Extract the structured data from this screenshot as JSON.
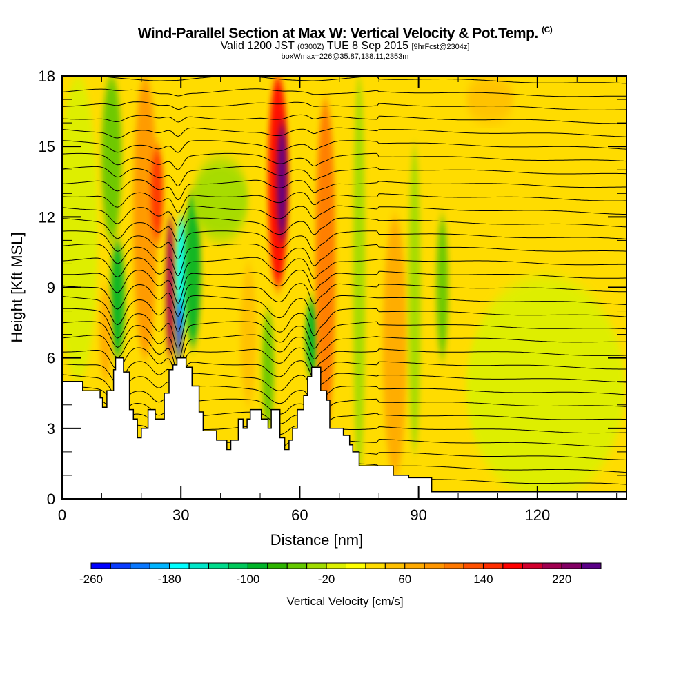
{
  "title": {
    "main": "Wind-Parallel Section at Max W: Vertical Velocity & Pot.Temp.",
    "copyright": "(C)",
    "valid_prefix": "Valid 1200 JST",
    "valid_utc": "(0300Z)",
    "valid_date": "TUE 8 Sep 2015",
    "forecast": "[9hrFcst@2304z]",
    "box": "boxWmax=226@35.87,138.11,2353m"
  },
  "chart_data": {
    "type": "heatmap",
    "title": "Wind-Parallel Section at Max W: Vertical Velocity & Pot.Temp.",
    "xlabel": "Distance [nm]",
    "ylabel": "Height [Kft MSL]",
    "xlim": [
      0,
      142.5
    ],
    "ylim": [
      0,
      18
    ],
    "x_ticks": [
      0,
      30,
      60,
      90,
      120
    ],
    "x_tick_labels": [
      "0",
      "30",
      "60",
      "90",
      "120"
    ],
    "x_minor_step": 10,
    "y_ticks": [
      0,
      3,
      6,
      9,
      12,
      15,
      18
    ],
    "y_tick_labels": [
      "0",
      "3",
      "6",
      "9",
      "12",
      "15",
      "18"
    ],
    "y_minor_step": 1,
    "background_value": 20,
    "features": [
      {
        "x": 4,
        "w": 10,
        "y0": 5,
        "y1": 18,
        "value": -20
      },
      {
        "x": 12.5,
        "w": 5,
        "y0": 11,
        "y1": 18,
        "value": -60
      },
      {
        "x": 14,
        "w": 3.5,
        "y0": 6,
        "y1": 11,
        "value": -100
      },
      {
        "x": 11,
        "w": 3,
        "y0": 5,
        "y1": 9,
        "value": 60
      },
      {
        "x": 21,
        "w": 6,
        "y0": 6,
        "y1": 18,
        "value": 80
      },
      {
        "x": 24,
        "w": 3,
        "y0": 11,
        "y1": 15,
        "value": 140
      },
      {
        "x": 27.3,
        "w": 2.2,
        "y0": 6,
        "y1": 12,
        "value": 200
      },
      {
        "x": 30.2,
        "w": 3,
        "y0": 7,
        "y1": 12,
        "value": -180
      },
      {
        "x": 29.5,
        "w": 1.5,
        "y0": 5.8,
        "y1": 8.5,
        "value": -240
      },
      {
        "x": 33,
        "w": 4,
        "y0": 6.5,
        "y1": 13,
        "value": -100
      },
      {
        "x": 40,
        "w": 14,
        "y0": 11,
        "y1": 14.5,
        "value": -40
      },
      {
        "x": 47,
        "w": 4,
        "y0": 4,
        "y1": 10,
        "value": 40
      },
      {
        "x": 52,
        "w": 3,
        "y0": 3,
        "y1": 8,
        "value": -60
      },
      {
        "x": 54.5,
        "w": 5,
        "y0": 9,
        "y1": 18,
        "value": 160
      },
      {
        "x": 55.5,
        "w": 2.5,
        "y0": 11,
        "y1": 16,
        "value": 240
      },
      {
        "x": 63,
        "w": 3,
        "y0": 5.2,
        "y1": 8.5,
        "value": -100
      },
      {
        "x": 66.5,
        "w": 5,
        "y0": 3,
        "y1": 17,
        "value": 100
      },
      {
        "x": 75,
        "w": 3,
        "y0": 1,
        "y1": 18,
        "value": -40
      },
      {
        "x": 84,
        "w": 6,
        "y0": 1,
        "y1": 12,
        "value": 60
      },
      {
        "x": 89,
        "w": 3,
        "y0": 2,
        "y1": 15,
        "value": -40
      },
      {
        "x": 96,
        "w": 3,
        "y0": 6,
        "y1": 12,
        "value": -60
      },
      {
        "x": 108,
        "w": 12,
        "y0": 16,
        "y1": 18,
        "value": 40
      },
      {
        "x": 122,
        "w": 40,
        "y0": 0,
        "y1": 9.5,
        "value": -20
      }
    ],
    "terrain": [
      [
        0,
        5.0
      ],
      [
        5.2,
        5.0
      ],
      [
        5.2,
        4.6
      ],
      [
        9.6,
        4.6
      ],
      [
        9.6,
        4.3
      ],
      [
        10.2,
        4.3
      ],
      [
        10.2,
        3.9
      ],
      [
        11.3,
        3.9
      ],
      [
        11.3,
        4.6
      ],
      [
        13,
        4.6
      ],
      [
        13,
        5.5
      ],
      [
        13.5,
        5.5
      ],
      [
        13.5,
        6.0
      ],
      [
        15.5,
        6.0
      ],
      [
        15.5,
        5.4
      ],
      [
        17,
        5.4
      ],
      [
        17,
        3.8
      ],
      [
        18,
        3.8
      ],
      [
        18,
        3.4
      ],
      [
        19,
        3.4
      ],
      [
        19,
        2.6
      ],
      [
        20,
        2.6
      ],
      [
        20,
        3.0
      ],
      [
        21.7,
        3.0
      ],
      [
        21.7,
        3.8
      ],
      [
        23.5,
        3.8
      ],
      [
        23.5,
        3.4
      ],
      [
        25.8,
        3.4
      ],
      [
        25.8,
        4.5
      ],
      [
        27,
        4.5
      ],
      [
        27,
        5.5
      ],
      [
        28,
        5.5
      ],
      [
        28,
        5.7
      ],
      [
        29,
        5.7
      ],
      [
        29,
        6.0
      ],
      [
        31.3,
        6.0
      ],
      [
        31.3,
        5.6
      ],
      [
        32.8,
        5.6
      ],
      [
        32.8,
        4.8
      ],
      [
        34.6,
        4.8
      ],
      [
        34.6,
        3.7
      ],
      [
        35.6,
        3.7
      ],
      [
        35.6,
        2.9
      ],
      [
        39,
        2.9
      ],
      [
        39,
        2.5
      ],
      [
        41.6,
        2.5
      ],
      [
        41.6,
        2.1
      ],
      [
        42.6,
        2.1
      ],
      [
        42.6,
        2.5
      ],
      [
        44.5,
        2.5
      ],
      [
        44.5,
        3.4
      ],
      [
        45.7,
        3.4
      ],
      [
        45.7,
        3.0
      ],
      [
        46.7,
        3.0
      ],
      [
        46.7,
        3.4
      ],
      [
        47.5,
        3.4
      ],
      [
        47.5,
        3.8
      ],
      [
        50.3,
        3.8
      ],
      [
        50.3,
        3.4
      ],
      [
        52,
        3.4
      ],
      [
        52,
        3.0
      ],
      [
        52.8,
        3.0
      ],
      [
        52.8,
        3.8
      ],
      [
        55,
        3.8
      ],
      [
        55,
        2.6
      ],
      [
        56.2,
        2.6
      ],
      [
        56.2,
        2.1
      ],
      [
        57.3,
        2.1
      ],
      [
        57.3,
        2.5
      ],
      [
        58.2,
        2.5
      ],
      [
        58.2,
        3.0
      ],
      [
        59.4,
        3.0
      ],
      [
        59.4,
        3.8
      ],
      [
        61,
        3.8
      ],
      [
        61,
        4.4
      ],
      [
        62,
        4.4
      ],
      [
        62,
        5.2
      ],
      [
        63,
        5.2
      ],
      [
        63,
        5.6
      ],
      [
        65.3,
        5.6
      ],
      [
        65.3,
        4.6
      ],
      [
        66.8,
        4.6
      ],
      [
        66.8,
        4.2
      ],
      [
        67.6,
        4.2
      ],
      [
        67.6,
        3.0
      ],
      [
        71,
        3.0
      ],
      [
        71,
        2.7
      ],
      [
        72.6,
        2.7
      ],
      [
        72.6,
        2.3
      ],
      [
        73.4,
        2.3
      ],
      [
        73.4,
        2.0
      ],
      [
        75,
        2.0
      ],
      [
        75,
        1.4
      ],
      [
        83.6,
        1.4
      ],
      [
        83.6,
        1.0
      ],
      [
        87.5,
        1.0
      ],
      [
        87.5,
        0.9
      ],
      [
        93.3,
        0.9
      ],
      [
        93.3,
        0.3
      ],
      [
        142.5,
        0.3
      ],
      [
        142.5,
        0
      ],
      [
        0,
        0
      ]
    ],
    "isentropes": {
      "count": 34,
      "base_height": 0.3,
      "spacing": 0.55
    },
    "colorbar": {
      "label": "Vertical Velocity [cm/s]",
      "min": -260,
      "max": 260,
      "step": 20,
      "tick_labels": [
        "-260",
        "-180",
        "-100",
        "-20",
        "60",
        "140",
        "220"
      ],
      "tick_values": [
        -260,
        -180,
        -100,
        -20,
        60,
        140,
        220
      ],
      "colors": [
        "#0000ff",
        "#0a3cff",
        "#0a78ff",
        "#00b4ff",
        "#00ffff",
        "#00e6c8",
        "#00dc8c",
        "#00c85a",
        "#00b428",
        "#2db400",
        "#64c800",
        "#a0dc00",
        "#dcf000",
        "#ffff00",
        "#ffdc00",
        "#ffc000",
        "#ffaa00",
        "#ff9600",
        "#ff7800",
        "#ff5000",
        "#ff2d00",
        "#ff0000",
        "#d2002d",
        "#a00050",
        "#820064",
        "#5a0087"
      ]
    }
  }
}
